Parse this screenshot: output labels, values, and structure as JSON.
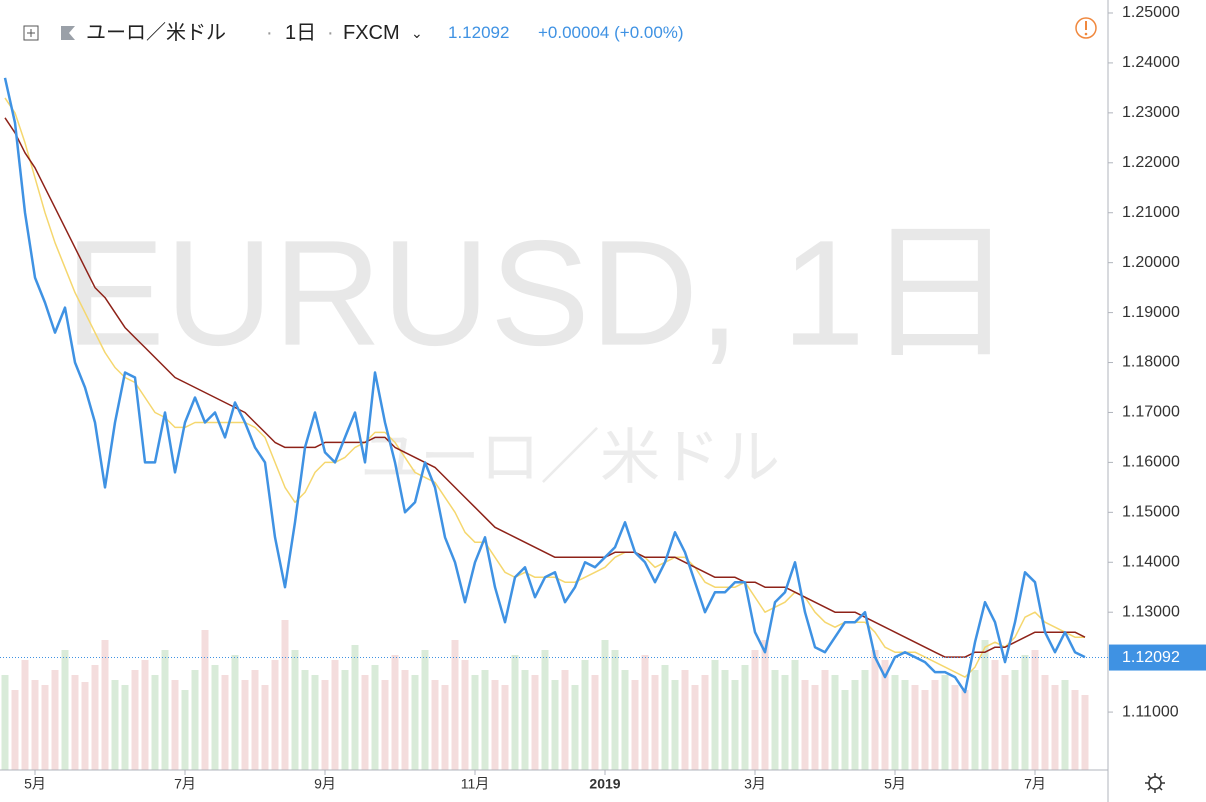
{
  "chart_data": {
    "type": "line",
    "symbol": "ユーロ／米ドル",
    "interval": "1日",
    "source": "FXCM",
    "change": "+0.00004 (+0.00%)",
    "watermark": "EURUSD, 1日",
    "watermark_sub": "ユーロ／米ドル",
    "last_price": {
      "value": 1.12092,
      "label": "1.12092"
    },
    "ylim": [
      1.0984,
      1.2526
    ],
    "yticks": [
      {
        "value": 1.25,
        "label": "1.25000"
      },
      {
        "value": 1.24,
        "label": "1.24000"
      },
      {
        "value": 1.23,
        "label": "1.23000"
      },
      {
        "value": 1.22,
        "label": "1.22000"
      },
      {
        "value": 1.21,
        "label": "1.21000"
      },
      {
        "value": 1.2,
        "label": "1.20000"
      },
      {
        "value": 1.19,
        "label": "1.19000"
      },
      {
        "value": 1.18,
        "label": "1.18000"
      },
      {
        "value": 1.17,
        "label": "1.17000"
      },
      {
        "value": 1.16,
        "label": "1.16000"
      },
      {
        "value": 1.15,
        "label": "1.15000"
      },
      {
        "value": 1.14,
        "label": "1.14000"
      },
      {
        "value": 1.13,
        "label": "1.13000"
      },
      {
        "value": 1.11,
        "label": "1.11000"
      }
    ],
    "categories": [
      null,
      null,
      null,
      "5月",
      null,
      null,
      null,
      null,
      null,
      null,
      null,
      null,
      null,
      null,
      null,
      null,
      null,
      null,
      "7月",
      null,
      null,
      null,
      null,
      null,
      null,
      null,
      null,
      null,
      null,
      null,
      null,
      null,
      "9月",
      null,
      null,
      null,
      null,
      null,
      null,
      null,
      null,
      null,
      null,
      null,
      null,
      null,
      null,
      "11月",
      null,
      null,
      null,
      null,
      null,
      null,
      null,
      null,
      null,
      null,
      null,
      null,
      "2019",
      null,
      null,
      null,
      null,
      null,
      null,
      null,
      null,
      null,
      null,
      null,
      null,
      null,
      null,
      "3月",
      null,
      null,
      null,
      null,
      null,
      null,
      null,
      null,
      null,
      null,
      null,
      null,
      null,
      "5月",
      null,
      null,
      null,
      null,
      null,
      null,
      null,
      null,
      null,
      null,
      null,
      null,
      null,
      "7月",
      null,
      null,
      null,
      null,
      null
    ],
    "series": [
      {
        "color": "#f5d76e",
        "values": [
          1.233,
          1.23,
          1.224,
          1.217,
          1.21,
          1.204,
          1.199,
          1.194,
          1.19,
          1.186,
          1.182,
          1.179,
          1.177,
          1.176,
          1.173,
          1.17,
          1.169,
          1.167,
          1.167,
          1.168,
          1.168,
          1.168,
          1.168,
          1.168,
          1.168,
          1.167,
          1.165,
          1.16,
          1.155,
          1.152,
          1.154,
          1.158,
          1.16,
          1.16,
          1.161,
          1.163,
          1.164,
          1.166,
          1.166,
          1.164,
          1.161,
          1.158,
          1.157,
          1.156,
          1.153,
          1.15,
          1.146,
          1.144,
          1.144,
          1.141,
          1.138,
          1.137,
          1.138,
          1.137,
          1.137,
          1.137,
          1.136,
          1.136,
          1.137,
          1.138,
          1.139,
          1.141,
          1.142,
          1.142,
          1.141,
          1.139,
          1.14,
          1.141,
          1.141,
          1.139,
          1.136,
          1.135,
          1.135,
          1.135,
          1.136,
          1.133,
          1.13,
          1.131,
          1.132,
          1.134,
          1.133,
          1.13,
          1.128,
          1.127,
          1.128,
          1.128,
          1.128,
          1.126,
          1.123,
          1.122,
          1.122,
          1.122,
          1.121,
          1.12,
          1.119,
          1.118,
          1.117,
          1.119,
          1.123,
          1.124,
          1.123,
          1.125,
          1.129,
          1.13,
          1.128,
          1.127,
          1.126,
          1.125,
          1.125
        ]
      },
      {
        "color": "#8e2218",
        "values": [
          1.229,
          1.226,
          1.222,
          1.219,
          1.215,
          1.211,
          1.207,
          1.203,
          1.199,
          1.195,
          1.193,
          1.19,
          1.187,
          1.185,
          1.183,
          1.181,
          1.179,
          1.177,
          1.176,
          1.175,
          1.174,
          1.173,
          1.172,
          1.171,
          1.17,
          1.168,
          1.166,
          1.164,
          1.163,
          1.163,
          1.163,
          1.163,
          1.164,
          1.164,
          1.164,
          1.164,
          1.164,
          1.165,
          1.165,
          1.163,
          1.162,
          1.161,
          1.16,
          1.159,
          1.157,
          1.155,
          1.153,
          1.151,
          1.149,
          1.147,
          1.146,
          1.145,
          1.144,
          1.143,
          1.142,
          1.141,
          1.141,
          1.141,
          1.141,
          1.141,
          1.141,
          1.142,
          1.142,
          1.142,
          1.141,
          1.141,
          1.141,
          1.141,
          1.14,
          1.139,
          1.138,
          1.137,
          1.137,
          1.137,
          1.136,
          1.136,
          1.135,
          1.135,
          1.135,
          1.134,
          1.133,
          1.132,
          1.131,
          1.13,
          1.13,
          1.13,
          1.129,
          1.128,
          1.127,
          1.126,
          1.125,
          1.124,
          1.123,
          1.122,
          1.121,
          1.121,
          1.121,
          1.122,
          1.122,
          1.123,
          1.123,
          1.124,
          1.125,
          1.126,
          1.126,
          1.126,
          1.126,
          1.126,
          1.125
        ]
      },
      {
        "color": "#3f92e3",
        "values": [
          1.237,
          1.228,
          1.21,
          1.197,
          1.192,
          1.186,
          1.191,
          1.18,
          1.175,
          1.168,
          1.155,
          1.168,
          1.178,
          1.177,
          1.16,
          1.16,
          1.17,
          1.158,
          1.168,
          1.173,
          1.168,
          1.17,
          1.165,
          1.172,
          1.168,
          1.163,
          1.16,
          1.145,
          1.135,
          1.148,
          1.163,
          1.17,
          1.162,
          1.16,
          1.165,
          1.17,
          1.16,
          1.178,
          1.168,
          1.16,
          1.15,
          1.152,
          1.16,
          1.155,
          1.145,
          1.14,
          1.132,
          1.14,
          1.145,
          1.135,
          1.128,
          1.137,
          1.139,
          1.133,
          1.137,
          1.138,
          1.132,
          1.135,
          1.14,
          1.139,
          1.141,
          1.143,
          1.148,
          1.142,
          1.14,
          1.136,
          1.14,
          1.146,
          1.142,
          1.136,
          1.13,
          1.134,
          1.134,
          1.136,
          1.136,
          1.126,
          1.122,
          1.132,
          1.134,
          1.14,
          1.13,
          1.123,
          1.122,
          1.125,
          1.128,
          1.128,
          1.13,
          1.121,
          1.117,
          1.121,
          1.122,
          1.121,
          1.12,
          1.118,
          1.118,
          1.117,
          1.114,
          1.124,
          1.132,
          1.128,
          1.12,
          1.128,
          1.138,
          1.136,
          1.126,
          1.122,
          1.126,
          1.122,
          1.121
        ]
      }
    ],
    "volume": {
      "ylim": [
        0,
        200
      ],
      "up_color": "#cfe6cf",
      "down_color": "#f1d4d4",
      "values": [
        95,
        80,
        110,
        90,
        85,
        100,
        120,
        95,
        88,
        105,
        130,
        90,
        85,
        100,
        110,
        95,
        120,
        90,
        80,
        100,
        140,
        105,
        95,
        115,
        90,
        100,
        85,
        110,
        150,
        120,
        100,
        95,
        90,
        110,
        100,
        125,
        95,
        105,
        90,
        115,
        100,
        95,
        120,
        90,
        85,
        130,
        110,
        95,
        100,
        90,
        85,
        115,
        100,
        95,
        120,
        90,
        100,
        85,
        110,
        95,
        130,
        120,
        100,
        90,
        115,
        95,
        105,
        90,
        100,
        85,
        95,
        110,
        100,
        90,
        105,
        120,
        130,
        100,
        95,
        110,
        90,
        85,
        100,
        95,
        80,
        90,
        100,
        120,
        110,
        95,
        90,
        85,
        80,
        90,
        95,
        85,
        80,
        100,
        130,
        110,
        95,
        100,
        115,
        120,
        95,
        85,
        90,
        80,
        75
      ]
    }
  }
}
